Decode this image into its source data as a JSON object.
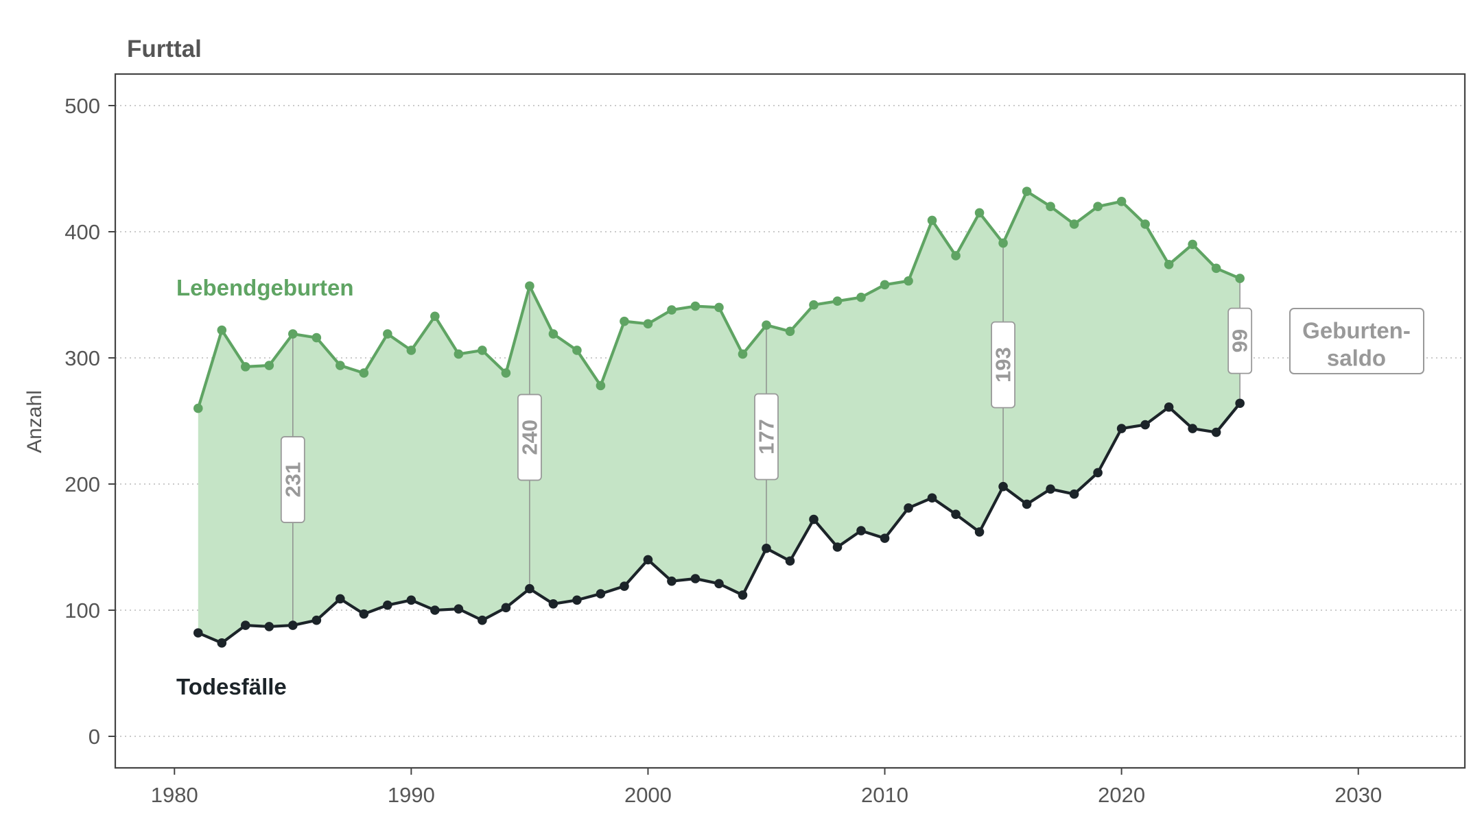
{
  "chart_data": {
    "type": "line",
    "title": "Furttal",
    "ylabel": "Anzahl",
    "xlabel": "",
    "xlim": [
      1977.5,
      2034.5
    ],
    "ylim": [
      -25,
      525
    ],
    "x_ticks": [
      "1980",
      "1990",
      "2000",
      "2010",
      "2020",
      "2030"
    ],
    "y_ticks": [
      "0",
      "100",
      "200",
      "300",
      "400",
      "500"
    ],
    "grid": "horizontal dotted",
    "x": [
      1981,
      1982,
      1983,
      1984,
      1985,
      1986,
      1987,
      1988,
      1989,
      1990,
      1991,
      1992,
      1993,
      1994,
      1995,
      1996,
      1997,
      1998,
      1999,
      2000,
      2001,
      2002,
      2003,
      2004,
      2005,
      2006,
      2007,
      2008,
      2009,
      2010,
      2011,
      2012,
      2013,
      2014,
      2015,
      2016,
      2017,
      2018,
      2019,
      2020,
      2021,
      2022,
      2023,
      2024,
      2025
    ],
    "series": [
      {
        "name": "Lebendgeburten",
        "color": "#5fa463",
        "values": [
          260,
          322,
          293,
          294,
          319,
          316,
          294,
          288,
          319,
          306,
          333,
          303,
          306,
          288,
          357,
          319,
          306,
          278,
          329,
          327,
          338,
          341,
          340,
          303,
          326,
          321,
          342,
          345,
          348,
          358,
          361,
          409,
          381,
          415,
          391,
          432,
          420,
          406,
          420,
          424,
          406,
          374,
          390,
          371,
          363
        ]
      },
      {
        "name": "Todesfälle",
        "color": "#1c2429",
        "values": [
          82,
          74,
          88,
          87,
          88,
          92,
          109,
          97,
          104,
          108,
          100,
          101,
          92,
          102,
          117,
          105,
          108,
          113,
          119,
          140,
          123,
          125,
          121,
          112,
          149,
          139,
          172,
          150,
          163,
          157,
          181,
          189,
          176,
          162,
          198,
          184,
          196,
          192,
          209,
          244,
          247,
          261,
          244,
          241,
          264
        ]
      }
    ],
    "fill_color": "#c5e4c6",
    "saldo_annotations": [
      {
        "x": 1985,
        "label": "231"
      },
      {
        "x": 1995,
        "label": "240"
      },
      {
        "x": 2005,
        "label": "177"
      },
      {
        "x": 2015,
        "label": "193"
      },
      {
        "x": 2025,
        "label": "99"
      }
    ],
    "legend_box": {
      "lines": [
        "Geburten-",
        "saldo"
      ]
    }
  }
}
